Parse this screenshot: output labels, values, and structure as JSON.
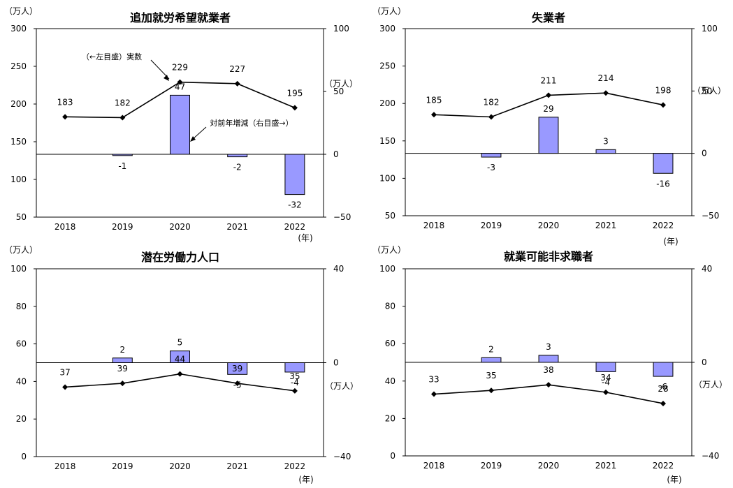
{
  "chart_data": [
    {
      "type": "bar+line",
      "title": "追加就労希望就業者",
      "left_unit": "（万人）",
      "right_unit": "（万人）",
      "x_unit": "(年)",
      "categories": [
        "2018",
        "2019",
        "2020",
        "2021",
        "2022"
      ],
      "left_ylim": [
        50,
        300
      ],
      "left_ticks": [
        "50",
        "100",
        "150",
        "200",
        "250",
        "300"
      ],
      "right_ylim": [
        -50,
        100
      ],
      "right_ticks": [
        "−50",
        "0",
        "50",
        "100"
      ],
      "series": [
        {
          "name": "実数",
          "kind": "line",
          "axis": "left",
          "values": [
            183,
            182,
            229,
            227,
            195
          ]
        },
        {
          "name": "対前年増減",
          "kind": "bar",
          "axis": "right",
          "values": [
            null,
            -1,
            47,
            -2,
            -32
          ]
        }
      ],
      "annotations": [
        "（←左目盛）実数",
        "対前年増減（右目盛→）"
      ]
    },
    {
      "type": "bar+line",
      "title": "失業者",
      "left_unit": "（万人）",
      "right_unit": "（万人）",
      "x_unit": "(年)",
      "categories": [
        "2018",
        "2019",
        "2020",
        "2021",
        "2022"
      ],
      "left_ylim": [
        50,
        300
      ],
      "left_ticks": [
        "50",
        "100",
        "150",
        "200",
        "250",
        "300"
      ],
      "right_ylim": [
        -50,
        100
      ],
      "right_ticks": [
        "−50",
        "0",
        "50",
        "100"
      ],
      "series": [
        {
          "kind": "line",
          "axis": "left",
          "values": [
            185,
            182,
            211,
            214,
            198
          ]
        },
        {
          "kind": "bar",
          "axis": "right",
          "values": [
            null,
            -3,
            29,
            3,
            -16
          ]
        }
      ]
    },
    {
      "type": "bar+line",
      "title": "潜在労働力人口",
      "left_unit": "（万人）",
      "right_unit": "（万人）",
      "x_unit": "(年)",
      "categories": [
        "2018",
        "2019",
        "2020",
        "2021",
        "2022"
      ],
      "left_ylim": [
        0,
        100
      ],
      "left_ticks": [
        "0",
        "20",
        "40",
        "60",
        "80",
        "100"
      ],
      "right_ylim": [
        -40,
        40
      ],
      "right_ticks": [
        "−40",
        "0",
        "40"
      ],
      "series": [
        {
          "kind": "line",
          "axis": "left",
          "values": [
            37,
            39,
            44,
            39,
            35
          ]
        },
        {
          "kind": "bar",
          "axis": "right",
          "values": [
            null,
            2,
            5,
            -5,
            -4
          ]
        }
      ]
    },
    {
      "type": "bar+line",
      "title": "就業可能非求職者",
      "left_unit": "（万人）",
      "right_unit": "（万人）",
      "x_unit": "(年)",
      "categories": [
        "2018",
        "2019",
        "2020",
        "2021",
        "2022"
      ],
      "left_ylim": [
        0,
        100
      ],
      "left_ticks": [
        "0",
        "20",
        "40",
        "60",
        "80",
        "100"
      ],
      "right_ylim": [
        -40,
        40
      ],
      "right_ticks": [
        "−40",
        "0",
        "40"
      ],
      "series": [
        {
          "kind": "line",
          "axis": "left",
          "values": [
            33,
            35,
            38,
            34,
            28
          ]
        },
        {
          "kind": "bar",
          "axis": "right",
          "values": [
            null,
            2,
            3,
            -4,
            -6
          ]
        }
      ]
    }
  ],
  "colors": {
    "bar_fill": "#9999ff",
    "bar_stroke": "#000000",
    "line": "#000000"
  }
}
